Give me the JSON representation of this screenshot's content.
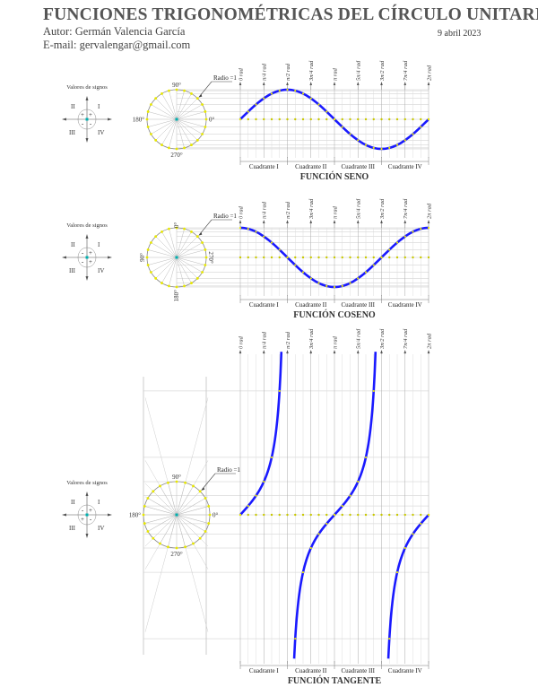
{
  "header": {
    "title": "FUNCIONES TRIGONOMÉTRICAS DEL CÍRCULO UNITARIO",
    "author": "Autor: Germán Valencia García",
    "email": "E-mail: gervalengar@gmail.com",
    "date": "9 abril 2023"
  },
  "tick_labels": [
    "0 rad",
    "π/4 rad",
    "π/2 rad",
    "3π/4 rad",
    "π rad",
    "5π/4 rad",
    "3π/2 rad",
    "7π/4 rad",
    "2π rad"
  ],
  "quadrant_labels": [
    "Cuadrante I",
    "Cuadrante II",
    "Cuadrante III",
    "Cuadrante IV"
  ],
  "radius_label": "Radio =1",
  "signs_title": "Valores de signos",
  "roman": [
    "I",
    "II",
    "III",
    "IV"
  ],
  "colors": {
    "curve": "#1a1aff",
    "marker": "#e8e800",
    "center": "#00b0b0",
    "grid": "#c8c8c8"
  },
  "panels": [
    {
      "name": "seno",
      "title": "FUNCIÓN SENO",
      "function": "sin",
      "circle_labels": {
        "top": "90°",
        "left": "180°",
        "right": "0°",
        "bottom": "270°"
      },
      "signs": {
        "I": "+",
        "II": "+",
        "III": "-",
        "IV": "-"
      }
    },
    {
      "name": "coseno",
      "title": "FUNCIÓN COSENO",
      "function": "cos",
      "circle_labels": {
        "top": "0°",
        "left": "90°",
        "right": "270°",
        "bottom": "180°"
      },
      "signs": {
        "I": "+",
        "II": "-",
        "III": "-",
        "IV": "+"
      }
    },
    {
      "name": "tangente",
      "title": "FUNCIÓN TANGENTE",
      "function": "tan",
      "circle_labels": {
        "top": "90°",
        "left": "180°",
        "right": "0°",
        "bottom": "270°"
      },
      "signs": {
        "I": "+",
        "II": "-",
        "III": "+",
        "IV": "-"
      }
    }
  ]
}
